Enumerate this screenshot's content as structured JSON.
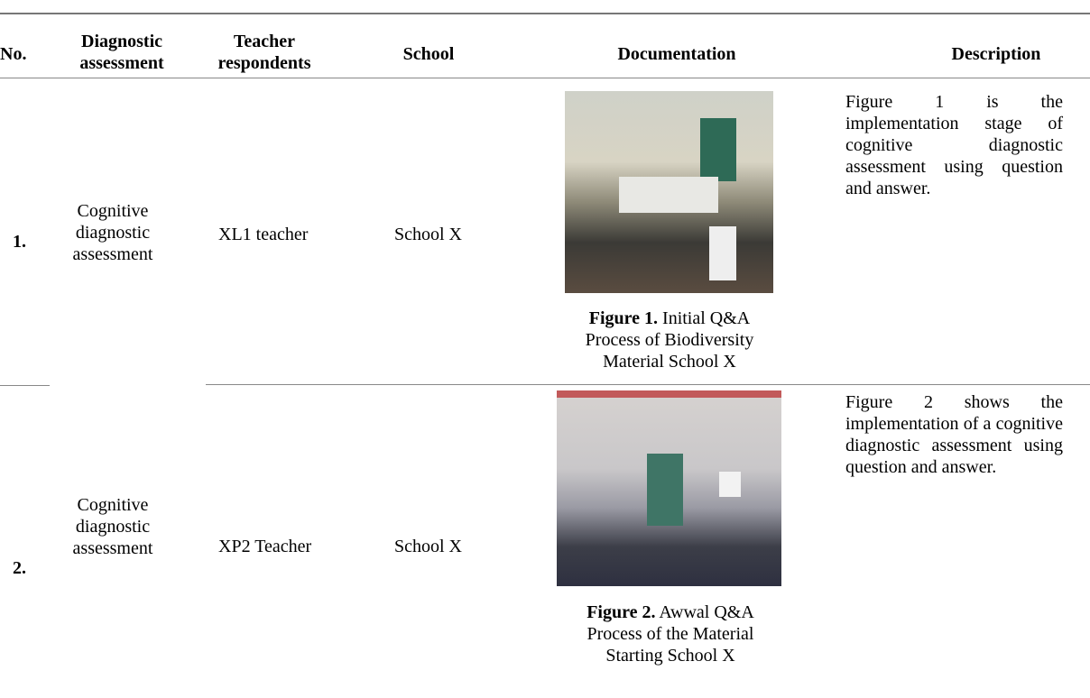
{
  "table": {
    "headers": [
      "No.",
      "Diagnostic assessment",
      "Teacher respondents",
      "School",
      "Documentation",
      "Description"
    ],
    "rows": [
      {
        "no": "1.",
        "assessment": "Cognitive diagnostic assessment",
        "teacher": "XL1 teacher",
        "school": "School X",
        "figure_label": "Figure 1.",
        "figure_caption": "Initial Q&A Process of Biodiversity Material School X",
        "description": "Figure 1 is the implementation stage of cognitive diagnostic assessment using question and answer."
      },
      {
        "no": "2.",
        "assessment": "Cognitive diagnostic assessment",
        "teacher": "XP2 Teacher",
        "school": "School X",
        "figure_label": "Figure 2.",
        "figure_caption": "Awwal Q&A Process of the Material Starting School X",
        "description": "Figure 2 shows the implementation of a cognitive diagnostic assessment using question and answer."
      }
    ]
  }
}
